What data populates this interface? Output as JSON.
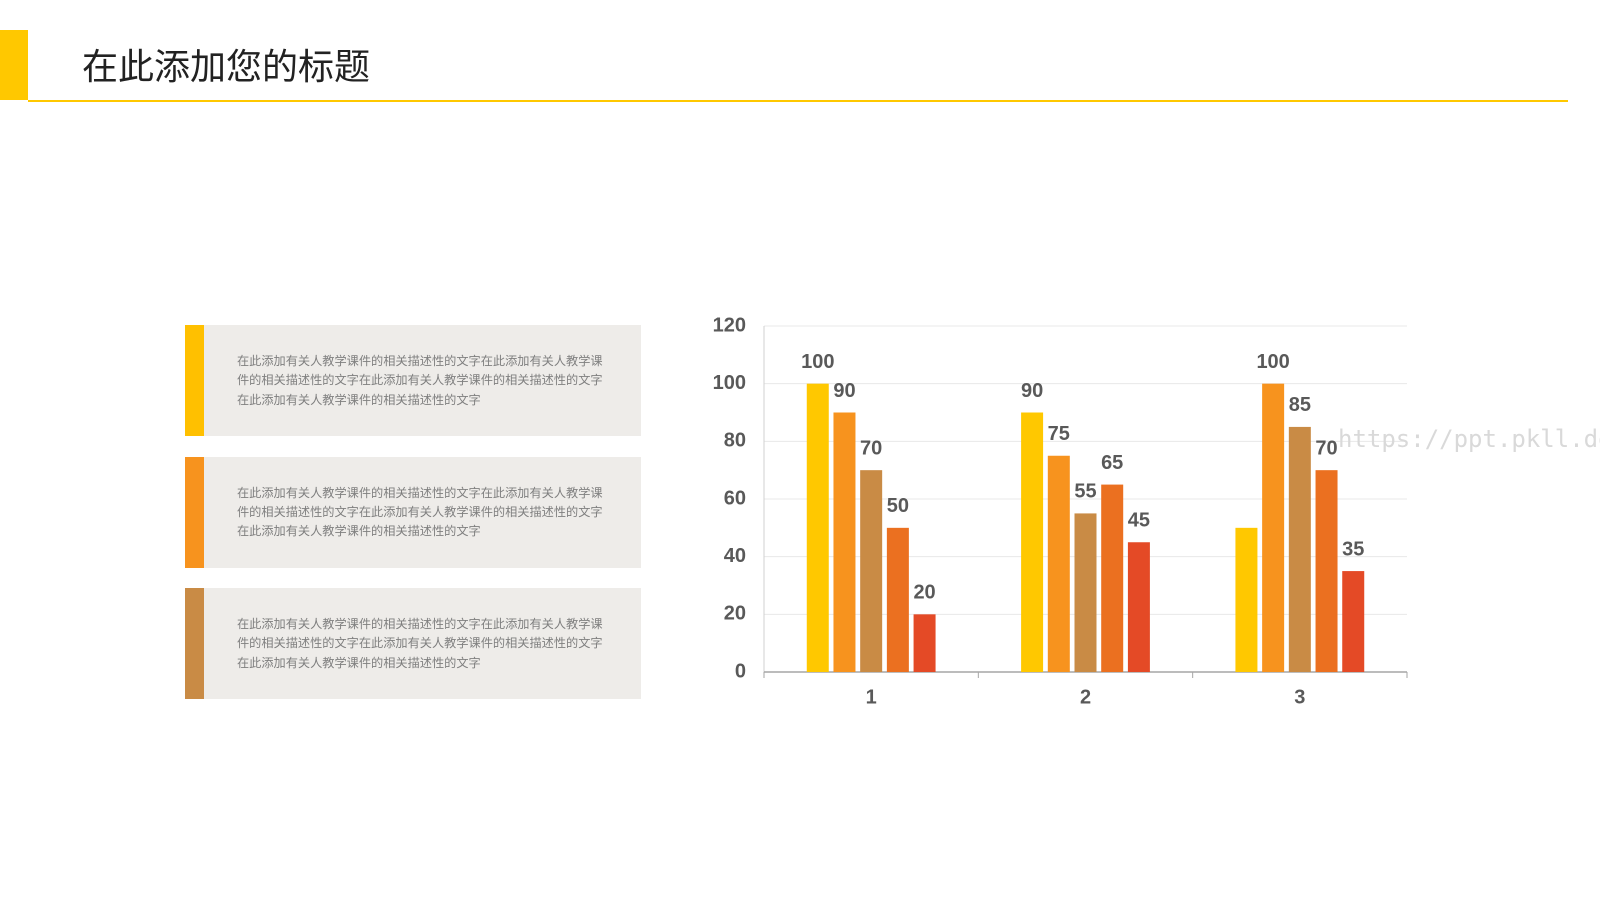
{
  "header": {
    "title": "在此添加您的标题"
  },
  "text_boxes": [
    {
      "text": "在此添加有关人教学课件的相关描述性的文字在此添加有关人教学课件的相关描述性的文字在此添加有关人教学课件的相关描述性的文字在此添加有关人教学课件的相关描述性的文字",
      "color": "#FFC000"
    },
    {
      "text": "在此添加有关人教学课件的相关描述性的文字在此添加有关人教学课件的相关描述性的文字在此添加有关人教学课件的相关描述性的文字在此添加有关人教学课件的相关描述性的文字",
      "color": "#F7931E"
    },
    {
      "text": "在此添加有关人教学课件的相关描述性的文字在此添加有关人教学课件的相关描述性的文字在此添加有关人教学课件的相关描述性的文字在此添加有关人教学课件的相关描述性的文字",
      "color": "#C98B45"
    }
  ],
  "watermark": "https://ppt.pkll.de",
  "chart_data": {
    "type": "bar",
    "categories": [
      "1",
      "2",
      "3"
    ],
    "series": [
      {
        "color": "#FFC800",
        "values": [
          100,
          90,
          50
        ],
        "value_labels": [
          "100",
          "90",
          null
        ]
      },
      {
        "color": "#F7931E",
        "values": [
          90,
          75,
          100
        ]
      },
      {
        "color": "#C98B45",
        "values": [
          70,
          55,
          85
        ]
      },
      {
        "color": "#EB7020",
        "values": [
          50,
          65,
          70
        ]
      },
      {
        "color": "#E44A26",
        "values": [
          20,
          45,
          35
        ]
      }
    ],
    "ylim": [
      0,
      120
    ],
    "yticks": [
      0,
      20,
      40,
      60,
      80,
      100,
      120
    ],
    "grid": true
  }
}
